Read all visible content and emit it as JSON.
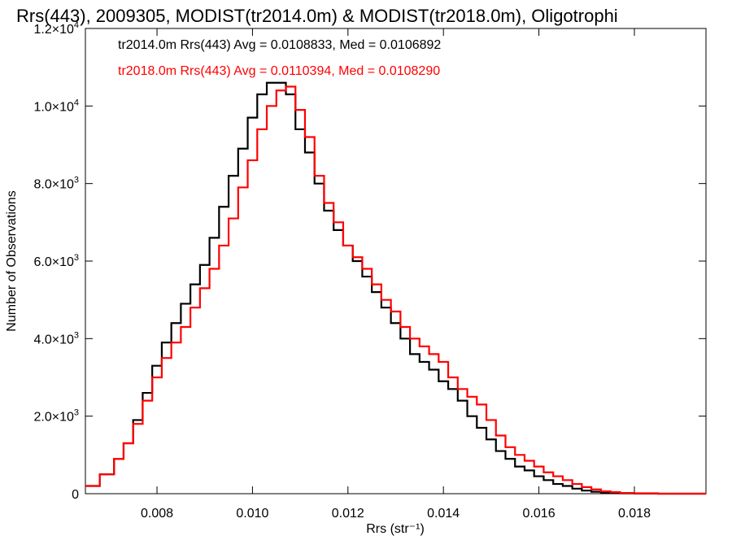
{
  "chart_data": {
    "type": "line",
    "title": "Rrs(443), 2009305, MODIST(tr2014.0m) & MODIST(tr2018.0m), Oligotrophi",
    "xlabel": "Rrs (str⁻¹)",
    "ylabel": "Number of Observations",
    "xlim": [
      0.0065,
      0.0195
    ],
    "ylim": [
      0,
      12000
    ],
    "x_ticks": [
      {
        "value": 0.008,
        "label": "0.008"
      },
      {
        "value": 0.01,
        "label": "0.010"
      },
      {
        "value": 0.012,
        "label": "0.012"
      },
      {
        "value": 0.014,
        "label": "0.014"
      },
      {
        "value": 0.016,
        "label": "0.016"
      },
      {
        "value": 0.018,
        "label": "0.018"
      }
    ],
    "y_ticks": [
      {
        "value": 0,
        "mant": "0",
        "times": "",
        "base": "",
        "exp": ""
      },
      {
        "value": 2000,
        "mant": "2.0",
        "times": "×",
        "base": "10",
        "exp": "3"
      },
      {
        "value": 4000,
        "mant": "4.0",
        "times": "×",
        "base": "10",
        "exp": "3"
      },
      {
        "value": 6000,
        "mant": "6.0",
        "times": "×",
        "base": "10",
        "exp": "3"
      },
      {
        "value": 8000,
        "mant": "8.0",
        "times": "×",
        "base": "10",
        "exp": "3"
      },
      {
        "value": 10000,
        "mant": "1.0",
        "times": "×",
        "base": "10",
        "exp": "4"
      },
      {
        "value": 12000,
        "mant": "1.2",
        "times": "×",
        "base": "10",
        "exp": "4"
      }
    ],
    "grid": false,
    "legend_position": "top-left",
    "annotations": [
      {
        "text": "tr2014.0m Rrs(443) Avg = 0.0108833, Med = 0.0106892",
        "color": "#000000"
      },
      {
        "text": "tr2018.0m Rrs(443) Avg = 0.0110394, Med = 0.0108290",
        "color": "#ff0000"
      }
    ],
    "series": [
      {
        "color": "#000000",
        "x": [
          0.0065,
          0.0068,
          0.0071,
          0.0073,
          0.0075,
          0.0077,
          0.0079,
          0.0081,
          0.0083,
          0.0085,
          0.0087,
          0.0089,
          0.0091,
          0.0093,
          0.0095,
          0.0097,
          0.0099,
          0.0101,
          0.0103,
          0.0105,
          0.0107,
          0.0109,
          0.0111,
          0.0113,
          0.0115,
          0.0117,
          0.0119,
          0.0121,
          0.0123,
          0.0125,
          0.0127,
          0.0129,
          0.0131,
          0.0133,
          0.0135,
          0.0137,
          0.0139,
          0.0141,
          0.0143,
          0.0145,
          0.0147,
          0.0149,
          0.0151,
          0.0153,
          0.0155,
          0.0157,
          0.0159,
          0.0161,
          0.0163,
          0.0165,
          0.0167,
          0.0169,
          0.0171,
          0.0173,
          0.0175,
          0.0177,
          0.018,
          0.0185,
          0.0195
        ],
        "y": [
          200,
          500,
          900,
          1300,
          1900,
          2600,
          3300,
          3900,
          4400,
          4900,
          5400,
          5900,
          6600,
          7400,
          8200,
          8900,
          9700,
          10300,
          10600,
          10600,
          10300,
          9400,
          8800,
          8000,
          7300,
          6800,
          6400,
          6000,
          5600,
          5200,
          4800,
          4400,
          4000,
          3600,
          3400,
          3200,
          2900,
          2700,
          2400,
          2000,
          1700,
          1400,
          1100,
          900,
          700,
          600,
          450,
          350,
          250,
          200,
          130,
          80,
          50,
          30,
          20,
          10,
          5,
          0,
          0
        ]
      },
      {
        "color": "#ff0000",
        "x": [
          0.0065,
          0.0068,
          0.0071,
          0.0073,
          0.0075,
          0.0077,
          0.0079,
          0.0081,
          0.0083,
          0.0085,
          0.0087,
          0.0089,
          0.0091,
          0.0093,
          0.0095,
          0.0097,
          0.0099,
          0.0101,
          0.0103,
          0.0105,
          0.0107,
          0.0109,
          0.0111,
          0.0113,
          0.0115,
          0.0117,
          0.0119,
          0.0121,
          0.0123,
          0.0125,
          0.0127,
          0.0129,
          0.0131,
          0.0133,
          0.0135,
          0.0137,
          0.0139,
          0.0141,
          0.0143,
          0.0145,
          0.0147,
          0.0149,
          0.0151,
          0.0153,
          0.0155,
          0.0157,
          0.0159,
          0.0161,
          0.0163,
          0.0165,
          0.0167,
          0.0169,
          0.0171,
          0.0173,
          0.0175,
          0.0177,
          0.018,
          0.0185,
          0.0195
        ],
        "y": [
          200,
          500,
          900,
          1300,
          1800,
          2400,
          3000,
          3500,
          3900,
          4300,
          4800,
          5300,
          5800,
          6400,
          7100,
          7900,
          8600,
          9400,
          10000,
          10400,
          10500,
          9900,
          9200,
          8200,
          7500,
          7000,
          6400,
          6100,
          5800,
          5400,
          5000,
          4700,
          4300,
          4000,
          3800,
          3600,
          3400,
          3000,
          2700,
          2500,
          2300,
          1900,
          1500,
          1200,
          1000,
          850,
          700,
          550,
          450,
          350,
          250,
          170,
          110,
          60,
          40,
          20,
          10,
          0,
          0
        ]
      }
    ]
  }
}
